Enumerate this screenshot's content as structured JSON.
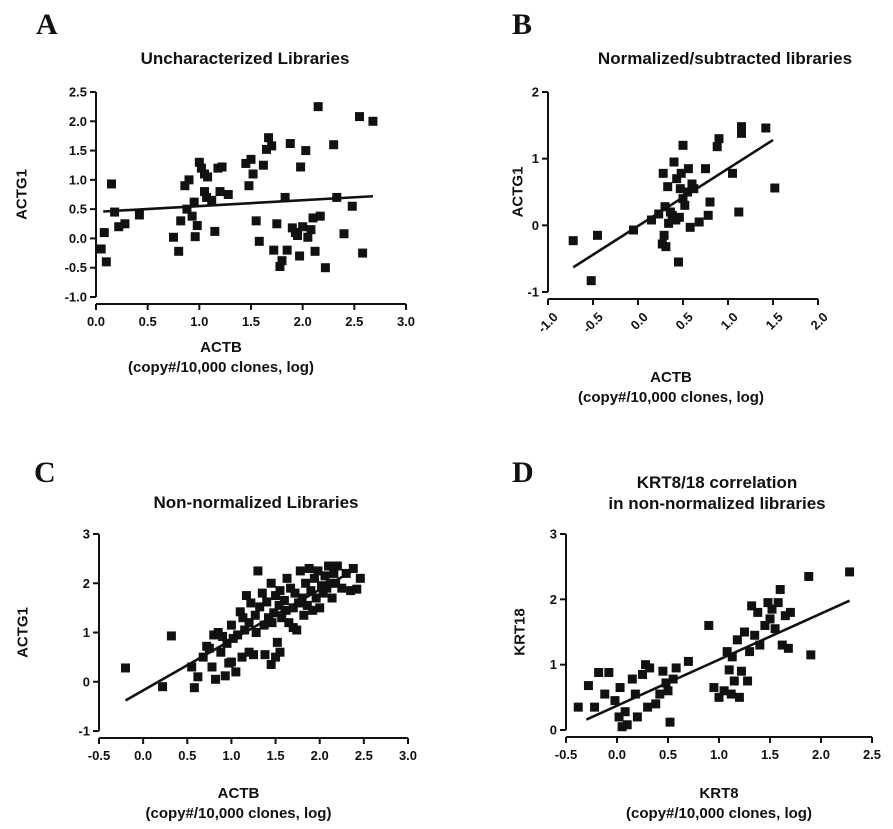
{
  "chart_data": [
    {
      "id": "A",
      "type": "scatter",
      "panel_letter": "A",
      "title": [
        "Uncharacterized Libraries"
      ],
      "xlabel": [
        "ACTB",
        "(copy#/10,000 clones, log)"
      ],
      "ylabel": "ACTG1",
      "xlim": [
        0.0,
        3.0
      ],
      "ylim": [
        -1.0,
        2.5
      ],
      "xticks": [
        0.0,
        0.5,
        1.0,
        1.5,
        2.0,
        2.5,
        3.0
      ],
      "xtick_labels": [
        "0.0",
        "0.5",
        "1.0",
        "1.5",
        "2.0",
        "2.5",
        "3.0"
      ],
      "yticks": [
        -1.0,
        -0.5,
        0.0,
        0.5,
        1.0,
        1.5,
        2.0,
        2.5
      ],
      "ytick_labels": [
        "-1.0",
        "-0.5",
        "0.0",
        "0.5",
        "1.0",
        "1.5",
        "2.0",
        "2.5"
      ],
      "x_tick_rotation": 0,
      "fit_line": {
        "x": [
          0.07,
          2.68
        ],
        "y": [
          0.46,
          0.72
        ]
      },
      "points": [
        [
          0.05,
          -0.18
        ],
        [
          0.08,
          0.1
        ],
        [
          0.1,
          -0.4
        ],
        [
          0.15,
          0.93
        ],
        [
          0.18,
          0.45
        ],
        [
          0.22,
          0.2
        ],
        [
          0.28,
          0.25
        ],
        [
          0.42,
          0.4
        ],
        [
          0.75,
          0.02
        ],
        [
          0.8,
          -0.22
        ],
        [
          0.82,
          0.3
        ],
        [
          0.86,
          0.9
        ],
        [
          0.88,
          0.5
        ],
        [
          0.9,
          1.0
        ],
        [
          0.93,
          0.38
        ],
        [
          0.95,
          0.62
        ],
        [
          0.96,
          0.03
        ],
        [
          0.98,
          0.22
        ],
        [
          1.0,
          1.3
        ],
        [
          1.02,
          1.2
        ],
        [
          1.05,
          0.8
        ],
        [
          1.05,
          1.1
        ],
        [
          1.07,
          0.7
        ],
        [
          1.08,
          1.05
        ],
        [
          1.12,
          0.65
        ],
        [
          1.15,
          0.12
        ],
        [
          1.18,
          1.2
        ],
        [
          1.2,
          0.8
        ],
        [
          1.22,
          1.22
        ],
        [
          1.28,
          0.75
        ],
        [
          1.45,
          1.28
        ],
        [
          1.48,
          0.9
        ],
        [
          1.5,
          1.35
        ],
        [
          1.52,
          1.1
        ],
        [
          1.55,
          0.3
        ],
        [
          1.58,
          -0.05
        ],
        [
          1.62,
          1.25
        ],
        [
          1.65,
          1.52
        ],
        [
          1.67,
          1.72
        ],
        [
          1.7,
          1.58
        ],
        [
          1.72,
          -0.2
        ],
        [
          1.75,
          0.25
        ],
        [
          1.78,
          -0.48
        ],
        [
          1.8,
          -0.38
        ],
        [
          1.83,
          0.7
        ],
        [
          1.85,
          -0.2
        ],
        [
          1.88,
          1.62
        ],
        [
          1.9,
          0.18
        ],
        [
          1.93,
          0.1
        ],
        [
          1.95,
          0.05
        ],
        [
          1.97,
          -0.3
        ],
        [
          1.98,
          1.22
        ],
        [
          2.0,
          0.2
        ],
        [
          2.03,
          1.5
        ],
        [
          2.05,
          0.02
        ],
        [
          2.08,
          0.15
        ],
        [
          2.1,
          0.35
        ],
        [
          2.12,
          -0.22
        ],
        [
          2.15,
          2.25
        ],
        [
          2.17,
          0.38
        ],
        [
          2.22,
          -0.5
        ],
        [
          2.3,
          1.6
        ],
        [
          2.33,
          0.7
        ],
        [
          2.4,
          0.08
        ],
        [
          2.48,
          0.55
        ],
        [
          2.55,
          2.08
        ],
        [
          2.58,
          -0.25
        ],
        [
          2.68,
          2.0
        ]
      ]
    },
    {
      "id": "B",
      "type": "scatter",
      "panel_letter": "B",
      "title": [
        "Normalized/subtracted libraries"
      ],
      "xlabel": [
        "ACTB",
        "(copy#/10,000 clones, log)"
      ],
      "ylabel": "ACTG1",
      "xlim": [
        -1.0,
        2.0
      ],
      "ylim": [
        -1.0,
        2.0
      ],
      "xticks": [
        -1.0,
        -0.5,
        0.0,
        0.5,
        1.0,
        1.5,
        2.0
      ],
      "xtick_labels": [
        "-1.0",
        "-0.5",
        "0.0",
        "0.5",
        "1.0",
        "1.5",
        "2.0"
      ],
      "yticks": [
        -1,
        0,
        1,
        2
      ],
      "ytick_labels": [
        "-1",
        "0",
        "1",
        "2"
      ],
      "x_tick_rotation": -45,
      "fit_line": {
        "x": [
          -0.72,
          1.5
        ],
        "y": [
          -0.63,
          1.28
        ]
      },
      "points": [
        [
          -0.72,
          -0.23
        ],
        [
          -0.52,
          -0.83
        ],
        [
          -0.45,
          -0.15
        ],
        [
          -0.05,
          -0.07
        ],
        [
          0.15,
          0.08
        ],
        [
          0.23,
          0.17
        ],
        [
          0.27,
          -0.28
        ],
        [
          0.28,
          0.78
        ],
        [
          0.29,
          -0.15
        ],
        [
          0.3,
          0.28
        ],
        [
          0.31,
          -0.32
        ],
        [
          0.33,
          0.58
        ],
        [
          0.34,
          0.03
        ],
        [
          0.36,
          0.2
        ],
        [
          0.38,
          0.15
        ],
        [
          0.4,
          0.95
        ],
        [
          0.42,
          0.08
        ],
        [
          0.43,
          0.7
        ],
        [
          0.45,
          -0.55
        ],
        [
          0.46,
          0.12
        ],
        [
          0.47,
          0.55
        ],
        [
          0.48,
          0.78
        ],
        [
          0.5,
          1.2
        ],
        [
          0.5,
          0.4
        ],
        [
          0.52,
          0.3
        ],
        [
          0.55,
          0.5
        ],
        [
          0.56,
          0.85
        ],
        [
          0.58,
          -0.03
        ],
        [
          0.6,
          0.62
        ],
        [
          0.62,
          0.55
        ],
        [
          0.68,
          0.05
        ],
        [
          0.75,
          0.85
        ],
        [
          0.78,
          0.15
        ],
        [
          0.8,
          0.35
        ],
        [
          0.88,
          1.18
        ],
        [
          0.9,
          1.3
        ],
        [
          1.05,
          0.78
        ],
        [
          1.12,
          0.2
        ],
        [
          1.15,
          1.48
        ],
        [
          1.15,
          1.38
        ],
        [
          1.42,
          1.46
        ],
        [
          1.52,
          0.56
        ]
      ]
    },
    {
      "id": "C",
      "type": "scatter",
      "panel_letter": "C",
      "title": [
        "Non-normalized Libraries"
      ],
      "xlabel": [
        "ACTB",
        "(copy#/10,000 clones, log)"
      ],
      "ylabel": "ACTG1",
      "xlim": [
        -0.5,
        3.0
      ],
      "ylim": [
        -1,
        3
      ],
      "xticks": [
        -0.5,
        0.0,
        0.5,
        1.0,
        1.5,
        2.0,
        2.5,
        3.0
      ],
      "xtick_labels": [
        "-0.5",
        "0.0",
        "0.5",
        "1.0",
        "1.5",
        "2.0",
        "2.5",
        "3.0"
      ],
      "yticks": [
        -1,
        0,
        1,
        2,
        3
      ],
      "ytick_labels": [
        "-1",
        "0",
        "1",
        "2",
        "3"
      ],
      "x_tick_rotation": 0,
      "fit_line": {
        "x": [
          -0.2,
          2.42
        ],
        "y": [
          -0.38,
          2.3
        ]
      },
      "points": [
        [
          -0.2,
          0.28
        ],
        [
          0.22,
          -0.1
        ],
        [
          0.32,
          0.93
        ],
        [
          0.55,
          0.3
        ],
        [
          0.58,
          -0.12
        ],
        [
          0.62,
          0.1
        ],
        [
          0.68,
          0.5
        ],
        [
          0.72,
          0.72
        ],
        [
          0.75,
          0.68
        ],
        [
          0.78,
          0.3
        ],
        [
          0.8,
          0.95
        ],
        [
          0.82,
          0.05
        ],
        [
          0.85,
          1.0
        ],
        [
          0.88,
          0.6
        ],
        [
          0.9,
          0.92
        ],
        [
          0.93,
          0.12
        ],
        [
          0.95,
          0.78
        ],
        [
          0.97,
          0.38
        ],
        [
          1.0,
          1.15
        ],
        [
          1.02,
          0.88
        ],
        [
          1.05,
          0.2
        ],
        [
          1.07,
          0.95
        ],
        [
          1.1,
          1.42
        ],
        [
          1.12,
          0.5
        ],
        [
          1.13,
          1.3
        ],
        [
          1.15,
          1.05
        ],
        [
          1.17,
          1.75
        ],
        [
          1.2,
          1.2
        ],
        [
          1.22,
          1.6
        ],
        [
          1.25,
          0.55
        ],
        [
          1.27,
          1.35
        ],
        [
          1.28,
          1.0
        ],
        [
          1.3,
          2.25
        ],
        [
          1.32,
          1.52
        ],
        [
          1.35,
          1.8
        ],
        [
          1.37,
          1.15
        ],
        [
          1.38,
          0.55
        ],
        [
          1.4,
          1.62
        ],
        [
          1.42,
          1.3
        ],
        [
          1.45,
          2.0
        ],
        [
          1.46,
          1.2
        ],
        [
          1.48,
          1.4
        ],
        [
          1.5,
          1.75
        ],
        [
          1.52,
          0.8
        ],
        [
          1.54,
          1.55
        ],
        [
          1.55,
          1.85
        ],
        [
          1.57,
          1.3
        ],
        [
          1.6,
          1.65
        ],
        [
          1.62,
          1.45
        ],
        [
          1.63,
          2.1
        ],
        [
          1.65,
          1.2
        ],
        [
          1.67,
          1.9
        ],
        [
          1.7,
          1.5
        ],
        [
          1.72,
          1.8
        ],
        [
          1.74,
          1.05
        ],
        [
          1.76,
          1.6
        ],
        [
          1.78,
          2.25
        ],
        [
          1.8,
          1.7
        ],
        [
          1.82,
          1.35
        ],
        [
          1.84,
          2.0
        ],
        [
          1.86,
          1.55
        ],
        [
          1.88,
          2.3
        ],
        [
          1.9,
          1.85
        ],
        [
          1.92,
          1.45
        ],
        [
          1.94,
          2.1
        ],
        [
          1.96,
          1.7
        ],
        [
          1.98,
          2.25
        ],
        [
          2.0,
          1.5
        ],
        [
          2.02,
          1.95
        ],
        [
          2.04,
          1.8
        ],
        [
          2.06,
          2.15
        ],
        [
          2.08,
          1.9
        ],
        [
          2.1,
          2.35
        ],
        [
          2.12,
          2.0
        ],
        [
          2.14,
          1.7
        ],
        [
          2.16,
          2.2
        ],
        [
          2.18,
          2.0
        ],
        [
          2.2,
          2.35
        ],
        [
          2.25,
          1.9
        ],
        [
          2.3,
          2.2
        ],
        [
          2.35,
          1.85
        ],
        [
          2.38,
          2.3
        ],
        [
          2.42,
          1.88
        ],
        [
          2.46,
          2.1
        ],
        [
          1.5,
          0.5
        ],
        [
          1.55,
          0.6
        ],
        [
          1.45,
          0.35
        ],
        [
          1.7,
          1.1
        ],
        [
          1.2,
          0.6
        ],
        [
          1.0,
          0.4
        ]
      ]
    },
    {
      "id": "D",
      "type": "scatter",
      "panel_letter": "D",
      "title": [
        "KRT8/18 correlation",
        "in non-normalized libraries"
      ],
      "xlabel": [
        "KRT8",
        "(copy#/10,000 clones, log)"
      ],
      "ylabel": "KRT18",
      "xlim": [
        -0.5,
        2.5
      ],
      "ylim": [
        0,
        3
      ],
      "xticks": [
        -0.5,
        0.0,
        0.5,
        1.0,
        1.5,
        2.0,
        2.5
      ],
      "xtick_labels": [
        "-0.5",
        "0.0",
        "0.5",
        "1.0",
        "1.5",
        "2.0",
        "2.5"
      ],
      "yticks": [
        0,
        1,
        2,
        3
      ],
      "ytick_labels": [
        "0",
        "1",
        "2",
        "3"
      ],
      "x_tick_rotation": 0,
      "fit_line": {
        "x": [
          -0.3,
          2.28
        ],
        "y": [
          0.16,
          1.98
        ]
      },
      "points": [
        [
          -0.38,
          0.35
        ],
        [
          -0.28,
          0.68
        ],
        [
          -0.22,
          0.35
        ],
        [
          -0.18,
          0.88
        ],
        [
          -0.12,
          0.55
        ],
        [
          -0.08,
          0.88
        ],
        [
          -0.02,
          0.45
        ],
        [
          0.02,
          0.2
        ],
        [
          0.03,
          0.65
        ],
        [
          0.05,
          0.05
        ],
        [
          0.08,
          0.28
        ],
        [
          0.1,
          0.08
        ],
        [
          0.15,
          0.78
        ],
        [
          0.18,
          0.55
        ],
        [
          0.2,
          0.2
        ],
        [
          0.25,
          0.85
        ],
        [
          0.28,
          1.0
        ],
        [
          0.3,
          0.35
        ],
        [
          0.32,
          0.95
        ],
        [
          0.38,
          0.4
        ],
        [
          0.42,
          0.55
        ],
        [
          0.45,
          0.9
        ],
        [
          0.48,
          0.72
        ],
        [
          0.5,
          0.6
        ],
        [
          0.52,
          0.12
        ],
        [
          0.55,
          0.78
        ],
        [
          0.58,
          0.95
        ],
        [
          0.7,
          1.05
        ],
        [
          0.9,
          1.6
        ],
        [
          0.95,
          0.65
        ],
        [
          1.0,
          0.5
        ],
        [
          1.05,
          0.6
        ],
        [
          1.08,
          1.2
        ],
        [
          1.1,
          0.92
        ],
        [
          1.12,
          0.55
        ],
        [
          1.13,
          1.12
        ],
        [
          1.15,
          0.75
        ],
        [
          1.18,
          1.38
        ],
        [
          1.2,
          0.5
        ],
        [
          1.22,
          0.9
        ],
        [
          1.25,
          1.5
        ],
        [
          1.28,
          0.75
        ],
        [
          1.3,
          1.2
        ],
        [
          1.32,
          1.9
        ],
        [
          1.35,
          1.45
        ],
        [
          1.38,
          1.8
        ],
        [
          1.4,
          1.3
        ],
        [
          1.45,
          1.6
        ],
        [
          1.48,
          1.95
        ],
        [
          1.5,
          1.7
        ],
        [
          1.52,
          1.85
        ],
        [
          1.55,
          1.55
        ],
        [
          1.58,
          1.95
        ],
        [
          1.6,
          2.15
        ],
        [
          1.62,
          1.3
        ],
        [
          1.65,
          1.75
        ],
        [
          1.68,
          1.25
        ],
        [
          1.7,
          1.8
        ],
        [
          1.88,
          2.35
        ],
        [
          1.9,
          1.15
        ],
        [
          2.28,
          2.42
        ]
      ]
    }
  ]
}
